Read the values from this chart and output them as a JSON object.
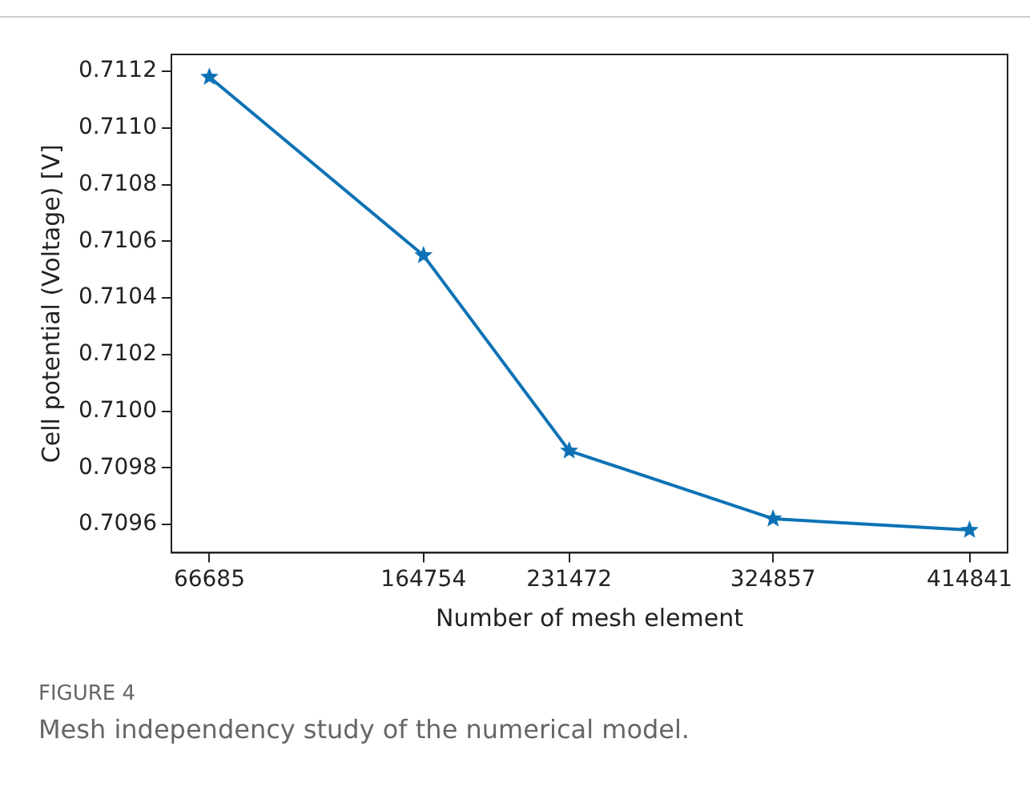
{
  "chart_data": {
    "type": "line",
    "xlabel": "Number of mesh element",
    "ylabel": "Cell potential (Voltage) [V]",
    "x": [
      66685,
      164754,
      231472,
      324857,
      414841
    ],
    "series": [
      {
        "color": "#0d72b5",
        "values": [
          0.71118,
          0.71055,
          0.70986,
          0.70962,
          0.70958
        ]
      }
    ],
    "xlim": [
      49277,
      432249
    ],
    "xticks": [
      66685,
      164754,
      231472,
      324857,
      414841
    ],
    "ylim": [
      0.7095,
      0.71126
    ],
    "yticks": [
      {
        "value": 0.7096,
        "label": "0.7096"
      },
      {
        "value": 0.7098,
        "label": "0.7098"
      },
      {
        "value": 0.71,
        "label": "0.7100"
      },
      {
        "value": 0.7102,
        "label": "0.7102"
      },
      {
        "value": 0.7104,
        "label": "0.7104"
      },
      {
        "value": 0.7106,
        "label": "0.7106"
      },
      {
        "value": 0.7108,
        "label": "0.7108"
      },
      {
        "value": 0.711,
        "label": "0.7110"
      },
      {
        "value": 0.7112,
        "label": "0.7112"
      }
    ],
    "marker": "star",
    "line_style": "solid",
    "grid": false,
    "legend": false,
    "annotations": [
      "FIGURE 4",
      "Mesh independency study of the numerical model."
    ]
  }
}
